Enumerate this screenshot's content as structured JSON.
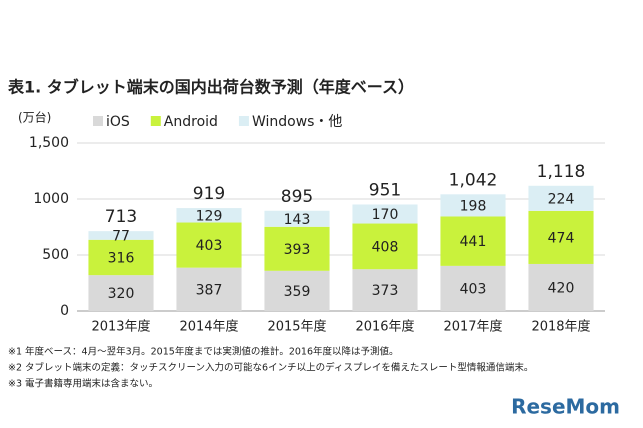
{
  "chart_data": {
    "type": "stacked-bar",
    "title": "表1. タブレット端末の国内出荷台数予測（年度ベース）",
    "y_label": "(万台)",
    "categories": [
      "2013年度",
      "2014年度",
      "2015年度",
      "2016年度",
      "2017年度",
      "2018年度"
    ],
    "series": [
      {
        "name": "iOS",
        "color": "#d9d9d9",
        "values": [
          320,
          387,
          359,
          373,
          403,
          420
        ]
      },
      {
        "name": "Android",
        "color": "#c9f23c",
        "values": [
          316,
          403,
          393,
          408,
          441,
          474
        ]
      },
      {
        "name": "Windows・他",
        "color": "#dbeef4",
        "values": [
          77,
          129,
          143,
          170,
          198,
          224
        ]
      }
    ],
    "totals": [
      713,
      919,
      895,
      951,
      1042,
      1118
    ],
    "totals_labels": [
      "713",
      "919",
      "895",
      "951",
      "1,042",
      "1,118"
    ],
    "ylim": [
      0,
      1500
    ],
    "yticks": [
      0,
      500,
      1000,
      {
        "value": 1500,
        "label": "1,500"
      }
    ],
    "grid": true,
    "notes": [
      "※1 年度ベース：4月～翌年3月。2015年度までは実測値の推計。2016年度以降は予測値。",
      "※2 タブレット端末の定義：タッチスクリーン入力の可能な6インチ以上のディスプレイを備えたスレート型情報通信端末。",
      "※3 電子書籍専用端末は含まない。"
    ],
    "watermark": "ReseMom"
  }
}
